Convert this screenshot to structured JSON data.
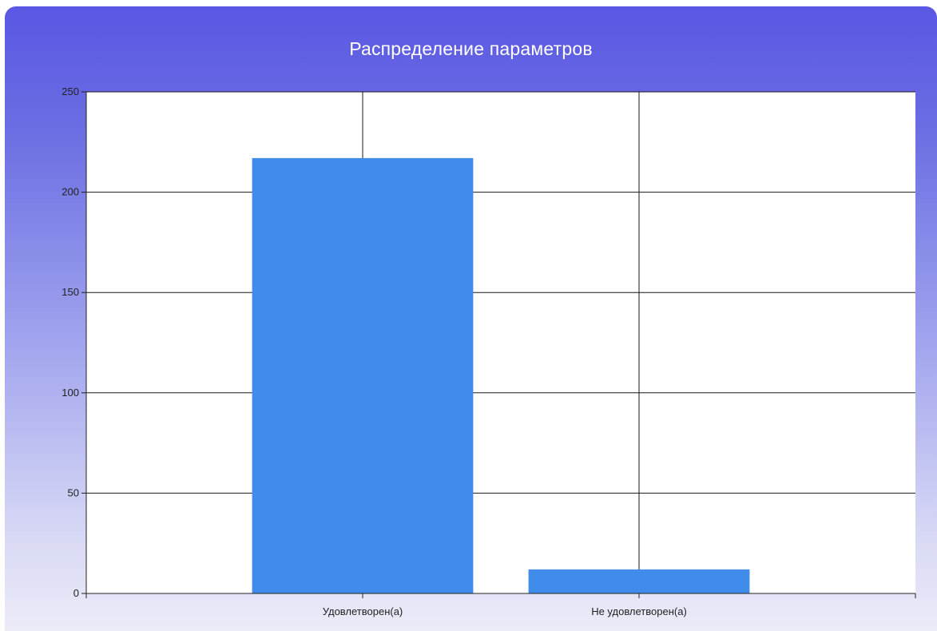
{
  "chart_data": {
    "type": "bar",
    "title": "Распределение параметров",
    "categories": [
      "Удовлетворен(а)",
      "Не удовлетворен(а)"
    ],
    "values": [
      217,
      12
    ],
    "ylim": [
      0,
      250
    ],
    "yticks": [
      "0",
      "50",
      "100",
      "150",
      "200",
      "250"
    ],
    "xlabel": "",
    "ylabel": "",
    "grid": true,
    "legend": "none",
    "colors": {
      "bar": "#418ceb",
      "plot_background": "#ffffff",
      "grid": "#1a1a1a",
      "title_text": "#ffffff"
    }
  }
}
